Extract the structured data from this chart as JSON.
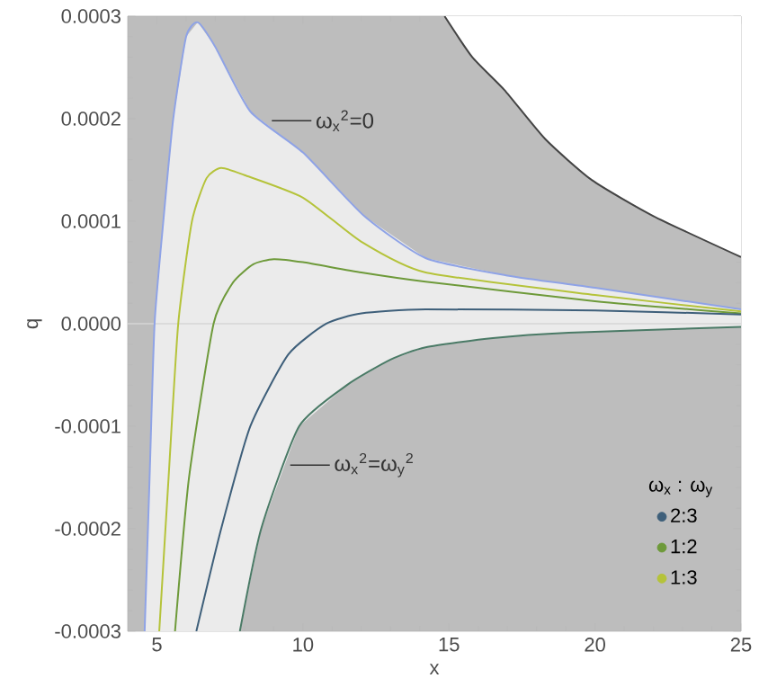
{
  "chart_data": {
    "type": "line",
    "xlabel": "x",
    "ylabel": "q",
    "legend_title": "ω$_{x}$ : ω$_{y}$",
    "legend": "bottom right",
    "xlim": [
      4,
      25
    ],
    "xticks": [
      5,
      10,
      15,
      20,
      25
    ],
    "ylim": [
      -0.0003,
      0.0003
    ],
    "yticks": [
      -0.0003,
      -0.0002,
      -0.0001,
      {
        "value": 0,
        "label": "0.0000"
      },
      0.0001,
      0.0002,
      0.0003
    ],
    "ref_lines": [
      {
        "axis": "y",
        "value": 0,
        "color": "#d6d6d6"
      }
    ],
    "series": [
      {
        "name": "ω$_{x}$$^{2}$=0",
        "color": "#8fa3e6",
        "x": [
          4.58,
          4.75,
          4.92,
          5.22,
          5.56,
          6.0,
          6.4,
          7.0,
          8.2,
          10.0,
          12.1,
          14.2,
          17.0,
          20.0,
          25.0
        ],
        "values": [
          -0.0003,
          -0.00015,
          0.0,
          0.0001,
          0.0002,
          0.00028,
          0.000294,
          0.00027,
          0.000207,
          0.000167,
          0.000105,
          6.4e-05,
          4.7e-05,
          3.5e-05,
          1.4e-05
        ]
      },
      {
        "name": "1:3",
        "color": "#b5c33a",
        "x": [
          5.08,
          5.4,
          5.73,
          6.2,
          6.7,
          7.2,
          8.0,
          10.0,
          12.0,
          14.2,
          20.0,
          25.0
        ],
        "values": [
          -0.0003,
          -0.00015,
          0.0,
          0.0001,
          0.000142,
          0.000152,
          0.000145,
          0.000123,
          8e-05,
          5e-05,
          2.8e-05,
          1.2e-05
        ]
      },
      {
        "name": "1:2",
        "color": "#6e9a3a",
        "x": [
          5.62,
          6.1,
          6.94,
          7.6,
          8.3,
          9.0,
          10.0,
          12.0,
          14.2,
          20.0,
          25.0
        ],
        "values": [
          -0.0003,
          -0.00015,
          0.0,
          4e-05,
          5.8e-05,
          6.3e-05,
          6e-05,
          5e-05,
          4.1e-05,
          2.2e-05,
          1e-05
        ]
      },
      {
        "name": "2:3",
        "color": "#3e5f7a",
        "x": [
          6.35,
          7.2,
          8.2,
          9.5,
          10.8,
          12.0,
          14.2,
          20.0,
          25.0
        ],
        "values": [
          -0.0003,
          -0.0002,
          -0.0001,
          -3e-05,
          0.0,
          1e-05,
          1.4e-05,
          1.3e-05,
          9e-06
        ]
      },
      {
        "name": "ω$_{x}$$^{2}$=ω$_{y}$$^{2}$",
        "color": "#4a7a66",
        "x": [
          7.84,
          8.57,
          9.87,
          11.5,
          13.0,
          14.2,
          16.5,
          19.1,
          25.0
        ],
        "values": [
          -0.0003,
          -0.0002,
          -0.0001,
          -6e-05,
          -3.5e-05,
          -2.3e-05,
          -1.4e-05,
          -8.8e-06,
          -3e-06
        ]
      },
      {
        "color": "#444444",
        "x": [
          14.85,
          15.8,
          16.9,
          18.3,
          19.9,
          22.0,
          25.0
        ],
        "values": [
          0.0003,
          0.00026,
          0.000228,
          0.00018,
          0.00014,
          0.000105,
          6.5e-05
        ]
      }
    ]
  }
}
